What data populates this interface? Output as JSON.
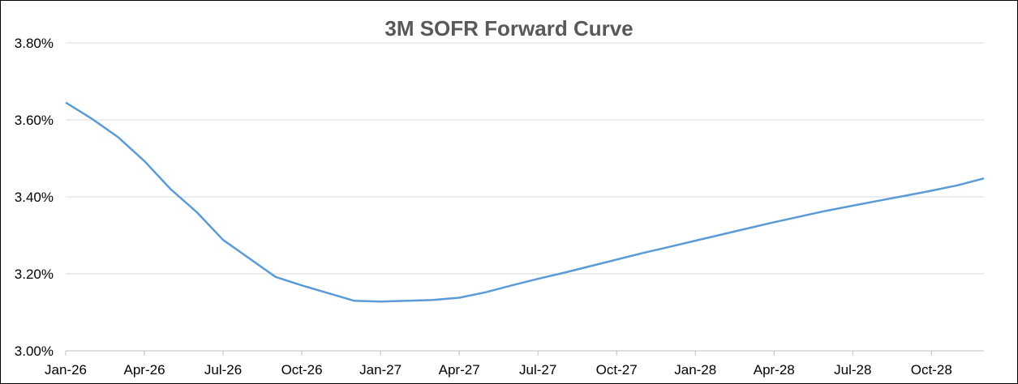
{
  "chart_data": {
    "type": "line",
    "title": "3M SOFR Forward Curve",
    "xlabel": "",
    "ylabel": "",
    "x_tick_labels": [
      "Jan-26",
      "Apr-26",
      "Jul-26",
      "Oct-26",
      "Jan-27",
      "Apr-27",
      "Jul-27",
      "Oct-27",
      "Jan-28",
      "Apr-28",
      "Jul-28",
      "Oct-28"
    ],
    "y_tick_labels": [
      "3.00%",
      "3.20%",
      "3.40%",
      "3.60%",
      "3.80%"
    ],
    "ylim": [
      3.0,
      3.8
    ],
    "xlim": [
      "Jan-26",
      "Dec-28"
    ],
    "grid": "horizontal",
    "legend": "none",
    "line_color": "#5B9BD5",
    "series": [
      {
        "x": [
          "Jan-26",
          "Feb-26",
          "Mar-26",
          "Apr-26",
          "May-26",
          "Jun-26",
          "Jul-26",
          "Aug-26",
          "Sep-26",
          "Oct-26",
          "Nov-26",
          "Dec-26",
          "Jan-27",
          "Feb-27",
          "Mar-27",
          "Apr-27",
          "May-27",
          "Jun-27",
          "Jul-27",
          "Aug-27",
          "Sep-27",
          "Oct-27",
          "Nov-27",
          "Dec-27",
          "Jan-28",
          "Feb-28",
          "Mar-28",
          "Apr-28",
          "May-28",
          "Jun-28",
          "Jul-28",
          "Aug-28",
          "Sep-28",
          "Oct-28",
          "Nov-28",
          "Dec-28"
        ],
        "values": [
          3.645,
          3.603,
          3.555,
          3.493,
          3.42,
          3.36,
          3.288,
          3.24,
          3.192,
          3.17,
          3.15,
          3.13,
          3.128,
          3.13,
          3.132,
          3.138,
          3.152,
          3.17,
          3.187,
          3.203,
          3.22,
          3.237,
          3.254,
          3.27,
          3.286,
          3.302,
          3.318,
          3.334,
          3.349,
          3.364,
          3.377,
          3.39,
          3.403,
          3.416,
          3.43,
          3.448
        ]
      }
    ]
  }
}
